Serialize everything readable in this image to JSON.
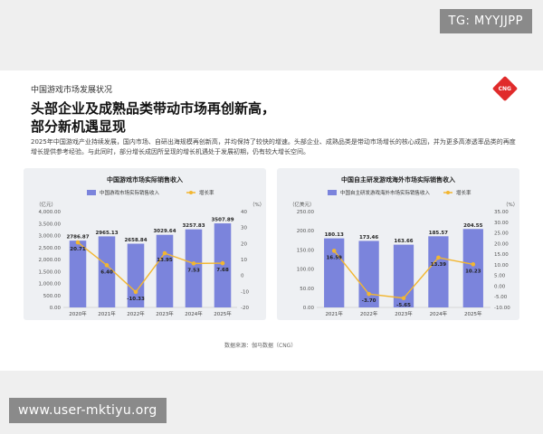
{
  "header": {
    "section_label": "中国游戏市场发展状况",
    "logo_text": "CNG",
    "headline_line1": "头部企业及成熟品类带动市场再创新高，",
    "headline_line2": "部分新机遇显现",
    "summary": "2025年中国游戏产业持续发展，国内市场、自研出海规模再创新高，并均保持了较快的增速。头部企业、成熟品类是带动市场增长的核心成因，并为更多高渗透率品类的再度增长提供参考经验。与此同时，部分增长成因所呈现的增长机遇处于发展初期，仍有较大增长空间。",
    "source": "数据来源：伽马数据（CNG）"
  },
  "watermarks": {
    "top": "TG: MYYJJPP",
    "bottom": "www.user-mktiyu.org"
  },
  "colors": {
    "bar": "#7b84dc",
    "line": "#f2b630",
    "card_bg": "#eef0f3"
  },
  "chart_data": [
    {
      "type": "bar",
      "title": "中国游戏市场实际销售收入",
      "ylabel_left": "亿元",
      "ylabel_right": "%",
      "categories": [
        "2020年",
        "2021年",
        "2022年",
        "2023年",
        "2024年",
        "2025年"
      ],
      "series": [
        {
          "name": "中国游戏市场实际销售收入",
          "type": "bar",
          "axis": "left",
          "values": [
            2786.87,
            2965.13,
            2658.84,
            3029.64,
            3257.83,
            3507.89
          ],
          "labels": [
            "2786.87",
            "2965.13",
            "2658.84",
            "3029.64",
            "3257.83",
            "3507.89"
          ]
        },
        {
          "name": "增长率",
          "type": "line",
          "axis": "right",
          "values": [
            20.71,
            6.4,
            -10.33,
            13.95,
            7.53,
            7.68
          ],
          "labels": [
            "20.71",
            "6.40",
            "-10.33",
            "13.95",
            "7.53",
            "7.68"
          ]
        }
      ],
      "ylim_left": [
        0,
        4000
      ],
      "yticks_left": [
        "0.00",
        "500.00",
        "1,000.00",
        "1,500.00",
        "2,000.00",
        "2,500.00",
        "3,000.00",
        "3,500.00",
        "4,000.00"
      ],
      "ylim_right": [
        -20,
        40
      ],
      "yticks_right": [
        "-20",
        "-10",
        "0",
        "10",
        "20",
        "30",
        "40"
      ],
      "legend_position": "top"
    },
    {
      "type": "bar",
      "title": "中国自主研发游戏海外市场实际销售收入",
      "ylabel_left": "亿美元",
      "ylabel_right": "%",
      "categories": [
        "2021年",
        "2022年",
        "2023年",
        "2024年",
        "2025年"
      ],
      "series": [
        {
          "name": "中国自主研发游戏海外市场实际销售收入",
          "type": "bar",
          "axis": "left",
          "values": [
            180.13,
            173.46,
            163.66,
            185.57,
            204.55
          ],
          "labels": [
            "180.13",
            "173.46",
            "163.66",
            "185.57",
            "204.55"
          ]
        },
        {
          "name": "增长率",
          "type": "line",
          "axis": "right",
          "values": [
            16.59,
            -3.7,
            -5.65,
            13.39,
            10.23
          ],
          "labels": [
            "16.59",
            "-3.70",
            "-5.65",
            "13.39",
            "10.23"
          ]
        }
      ],
      "ylim_left": [
        0,
        250
      ],
      "yticks_left": [
        "0.00",
        "50.00",
        "100.00",
        "150.00",
        "200.00",
        "250.00"
      ],
      "ylim_right": [
        -10,
        35
      ],
      "yticks_right": [
        "-10.00",
        "-5.00",
        "0.00",
        "5.00",
        "10.00",
        "15.00",
        "20.00",
        "25.00",
        "30.00",
        "35.00"
      ],
      "legend_position": "top"
    }
  ]
}
